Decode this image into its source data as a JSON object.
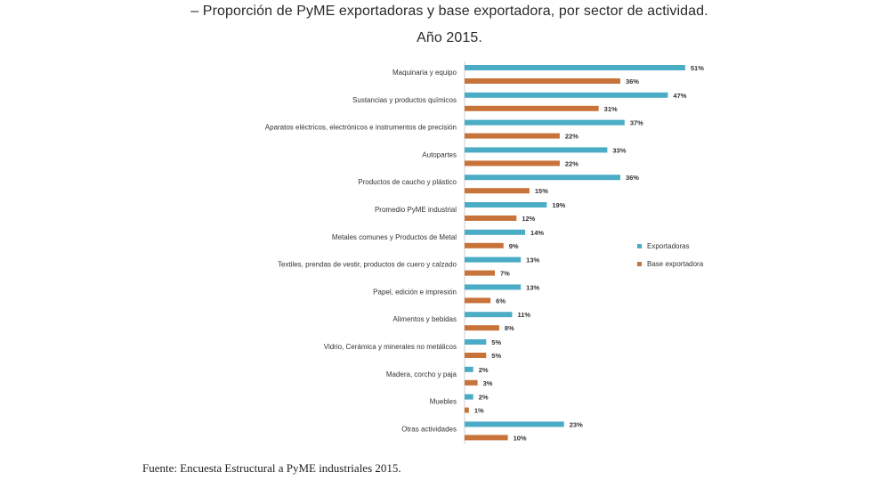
{
  "title_line1": "– Proporción de PyME exportadoras y base exportadora, por sector de actividad.",
  "title_line2": "Año 2015.",
  "source": "Fuente: Encuesta Estructural a PyME industriales 2015.",
  "colors": {
    "exportadoras": "#4bacc6",
    "base": "#c8733a"
  },
  "chart_data": {
    "type": "bar",
    "orientation": "horizontal",
    "categories": [
      "Maquinaria y equipo",
      "Sustancias y productos químicos",
      "Aparatos eléctricos, electrónicos e instrumentos de precisión",
      "Autopartes",
      "Productos de caucho y plástico",
      "Promedio PyME industrial",
      "Metales comunes y Productos de Metal",
      "Textiles, prendas de vestir, productos de cuero y calzado",
      "Papel, edición e impresión",
      "Alimentos y bebidas",
      "Vidrio, Cerámica y minerales no metálicos",
      "Madera, corcho y paja",
      "Muebles",
      "Otras actividades"
    ],
    "series": [
      {
        "name": "Exportadoras",
        "values": [
          51,
          47,
          37,
          33,
          36,
          19,
          14,
          13,
          13,
          11,
          5,
          2,
          2,
          23
        ],
        "labels": [
          "51%",
          "47%",
          "37%",
          "33%",
          "36%",
          "19%",
          "14%",
          "13%",
          "13%",
          "11%",
          "5%",
          "2%",
          "2%",
          "23%"
        ]
      },
      {
        "name": "Base exportadora",
        "values": [
          36,
          31,
          22,
          22,
          15,
          12,
          9,
          7,
          6,
          8,
          5,
          3,
          1,
          10
        ],
        "labels": [
          "36%",
          "31%",
          "22%",
          "22%",
          "15%",
          "12%",
          "9%",
          "7%",
          "6%",
          "8%",
          "5%",
          "3%",
          "1%",
          "10%"
        ]
      }
    ],
    "legend_position": "right",
    "grid": false
  }
}
